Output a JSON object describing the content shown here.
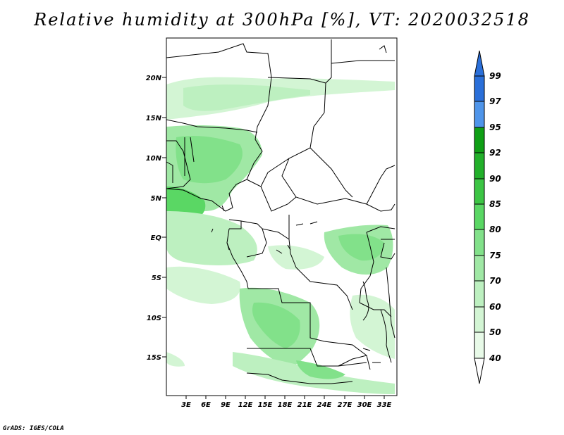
{
  "header": {
    "title": "Relative humidity at 300hPa [%], VT: 2020032518"
  },
  "footer": {
    "credit": "GrADS: IGES/COLA"
  },
  "map": {
    "lat_ticks": [
      "20N",
      "15N",
      "10N",
      "5N",
      "EQ",
      "5S",
      "10S",
      "15S"
    ],
    "lon_ticks": [
      "3E",
      "6E",
      "9E",
      "12E",
      "15E",
      "18E",
      "21E",
      "24E",
      "27E",
      "30E",
      "33E"
    ]
  },
  "colorbar": {
    "labels": [
      "99",
      "97",
      "95",
      "92",
      "90",
      "85",
      "80",
      "75",
      "70",
      "60",
      "50",
      "40"
    ],
    "colors": {
      "c_97_99": "#2a6fd9",
      "c_95_97": "#4f95ea",
      "c_92_95": "#0f9f15",
      "c_90_92": "#22b02a",
      "c_85_90": "#3cc544",
      "c_80_85": "#5ad764",
      "c_75_80": "#82e18a",
      "c_70_75": "#a0e8a5",
      "c_60_70": "#bdf0c0",
      "c_50_60": "#d3f5d4",
      "c_40_50": "#e8fae8",
      "top_arrow": "#2a6fd9",
      "bottom_arrow": "#ffffff"
    }
  }
}
